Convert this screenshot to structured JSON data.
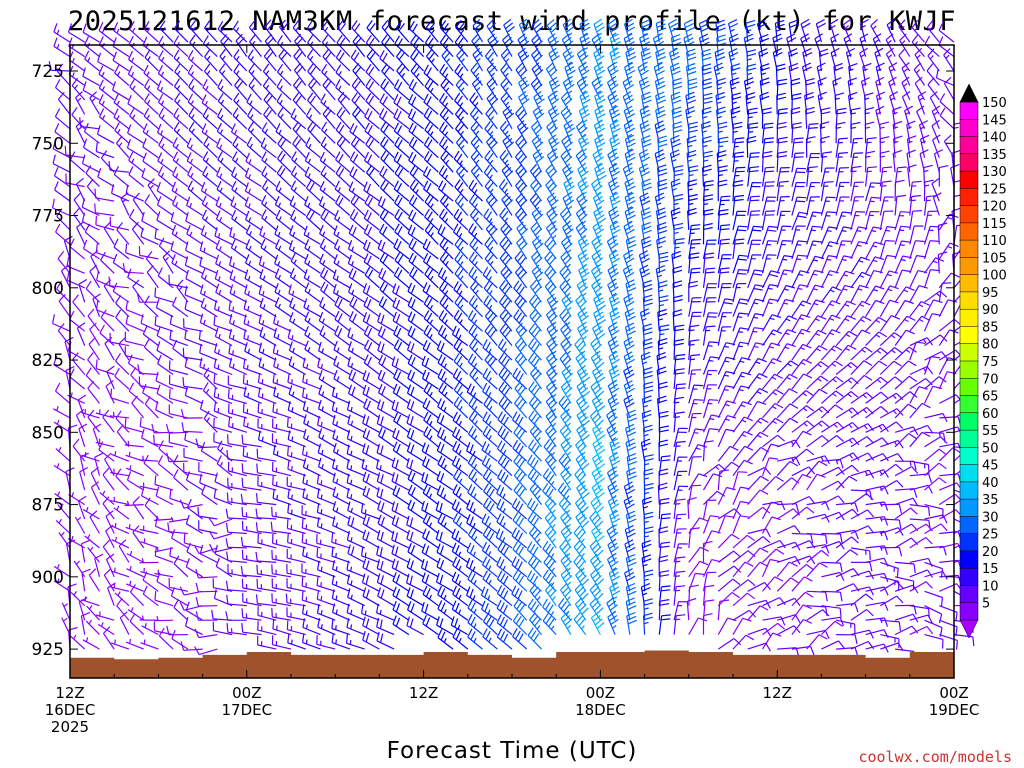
{
  "chart_data": {
    "type": "wind-barb-profile",
    "title": "2025121612 NAM3KM forecast wind profile (kt) for KWJF",
    "xlabel": "Forecast Time (UTC)",
    "ylabel": "",
    "units": "kt",
    "credit": "coolwx.com/models",
    "x_range_hours": [
      0,
      60
    ],
    "x_ticks": [
      {
        "hour": 0,
        "lines": [
          "12Z",
          "16DEC",
          "2025"
        ]
      },
      {
        "hour": 12,
        "lines": [
          "00Z",
          "17DEC"
        ]
      },
      {
        "hour": 24,
        "lines": [
          "12Z"
        ]
      },
      {
        "hour": 36,
        "lines": [
          "00Z",
          "18DEC"
        ]
      },
      {
        "hour": 48,
        "lines": [
          "12Z"
        ]
      },
      {
        "hour": 60,
        "lines": [
          "00Z",
          "19DEC"
        ]
      }
    ],
    "y_range_hpa": [
      935,
      716
    ],
    "y_ticks": [
      725,
      750,
      775,
      800,
      825,
      850,
      875,
      900,
      925
    ],
    "colorbar": {
      "levels": [
        5,
        10,
        15,
        20,
        25,
        30,
        35,
        40,
        45,
        50,
        55,
        60,
        65,
        70,
        75,
        80,
        85,
        90,
        95,
        100,
        105,
        110,
        115,
        120,
        125,
        130,
        135,
        140,
        145,
        150
      ],
      "colors": [
        "#8800ff",
        "#6600ff",
        "#3300ff",
        "#0000ff",
        "#0033ff",
        "#0066ff",
        "#0099ff",
        "#00bbff",
        "#00ddee",
        "#00ffcc",
        "#00ff99",
        "#00ff66",
        "#33ff33",
        "#66ff00",
        "#99ff00",
        "#ccff00",
        "#ffff00",
        "#ffee00",
        "#ffdd00",
        "#ffbb00",
        "#ff9900",
        "#ff8800",
        "#ff6600",
        "#ff4400",
        "#ff2200",
        "#ff0000",
        "#ff0066",
        "#ff0099",
        "#ff00cc",
        "#ff00ff"
      ],
      "under_color": "#aa00ff",
      "over_color": "#000000"
    },
    "time_samples_hours": [
      0,
      6,
      12,
      18,
      24,
      30,
      36,
      42,
      48,
      54,
      60
    ],
    "wind_by_time": [
      {
        "hour": 0,
        "upper": {
          "dir": 300,
          "spd": 12
        },
        "lower": {
          "dir": 330,
          "spd": 7
        }
      },
      {
        "hour": 6,
        "upper": {
          "dir": 310,
          "spd": 14
        },
        "lower": {
          "dir": 290,
          "spd": 7
        }
      },
      {
        "hour": 12,
        "upper": {
          "dir": 320,
          "spd": 17
        },
        "lower": {
          "dir": 275,
          "spd": 12
        }
      },
      {
        "hour": 18,
        "upper": {
          "dir": 320,
          "spd": 18
        },
        "lower": {
          "dir": 290,
          "spd": 15
        }
      },
      {
        "hour": 24,
        "upper": {
          "dir": 315,
          "spd": 22
        },
        "lower": {
          "dir": 300,
          "spd": 20
        }
      },
      {
        "hour": 30,
        "upper": {
          "dir": 330,
          "spd": 28
        },
        "lower": {
          "dir": 310,
          "spd": 28
        }
      },
      {
        "hour": 36,
        "upper": {
          "dir": 340,
          "spd": 35
        },
        "lower": {
          "dir": 330,
          "spd": 40
        }
      },
      {
        "hour": 42,
        "upper": {
          "dir": 350,
          "spd": 32
        },
        "lower": {
          "dir": 20,
          "spd": 9
        }
      },
      {
        "hour": 48,
        "upper": {
          "dir": 350,
          "spd": 22
        },
        "lower": {
          "dir": 60,
          "spd": 10
        }
      },
      {
        "hour": 54,
        "upper": {
          "dir": 340,
          "spd": 15
        },
        "lower": {
          "dir": 80,
          "spd": 12
        }
      },
      {
        "hour": 60,
        "upper": {
          "dir": 310,
          "spd": 12
        },
        "lower": {
          "dir": 90,
          "spd": 10
        }
      }
    ],
    "upper_level_hpa": 720,
    "lower_level_hpa": 880,
    "surface_pressure_hpa": [
      {
        "hour": 0,
        "p": 928
      },
      {
        "hour": 3,
        "p": 928.5
      },
      {
        "hour": 6,
        "p": 928
      },
      {
        "hour": 9,
        "p": 927
      },
      {
        "hour": 12,
        "p": 926
      },
      {
        "hour": 15,
        "p": 927
      },
      {
        "hour": 18,
        "p": 927
      },
      {
        "hour": 21,
        "p": 927
      },
      {
        "hour": 24,
        "p": 926
      },
      {
        "hour": 27,
        "p": 927
      },
      {
        "hour": 30,
        "p": 928
      },
      {
        "hour": 33,
        "p": 926
      },
      {
        "hour": 36,
        "p": 926
      },
      {
        "hour": 39,
        "p": 925.5
      },
      {
        "hour": 42,
        "p": 926
      },
      {
        "hour": 45,
        "p": 927
      },
      {
        "hour": 48,
        "p": 927
      },
      {
        "hour": 51,
        "p": 927
      },
      {
        "hour": 54,
        "p": 928
      },
      {
        "hour": 57,
        "p": 926
      },
      {
        "hour": 60,
        "p": 925.5
      }
    ],
    "surface_color": "#a0522d"
  }
}
